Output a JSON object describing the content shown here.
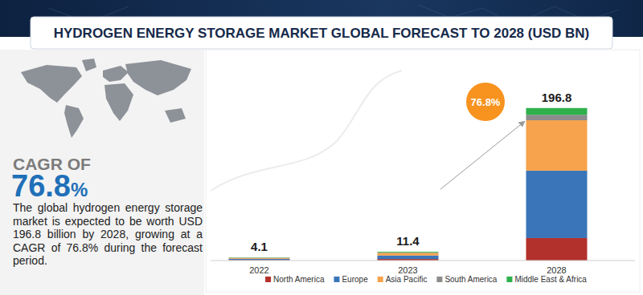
{
  "chart_data": {
    "type": "bar",
    "stacked": true,
    "title": "HYDROGEN ENERGY STORAGE MARKET GLOBAL FORECAST TO 2028 (USD BN)",
    "categories": [
      "2022",
      "2023",
      "2028"
    ],
    "series": [
      {
        "name": "North America",
        "color": "#b3312c",
        "values": [
          0.7,
          2.0,
          29
        ]
      },
      {
        "name": "Europe",
        "color": "#3b75b9",
        "values": [
          1.6,
          4.5,
          87
        ]
      },
      {
        "name": "Asia Pacific",
        "color": "#f7a24c",
        "values": [
          1.2,
          3.4,
          65
        ]
      },
      {
        "name": "South America",
        "color": "#8c8c8c",
        "values": [
          0.25,
          0.6,
          7
        ]
      },
      {
        "name": "Middle East & Africa",
        "color": "#2eb04b",
        "values": [
          0.35,
          0.9,
          8.8
        ]
      }
    ],
    "totals": [
      4.1,
      11.4,
      196.8
    ],
    "ylim": [
      0,
      210
    ],
    "tick_labels": "x",
    "grid": false,
    "legend": "bottom",
    "annotations": [
      "76.8%"
    ]
  },
  "sidebar": {
    "heading": "CAGR OF",
    "value": "76.8%",
    "description": "The global hydrogen energy storage market is expected to be worth USD  196.8 billion by 2028, growing at a CAGR of 76.8% during the forecast period."
  }
}
